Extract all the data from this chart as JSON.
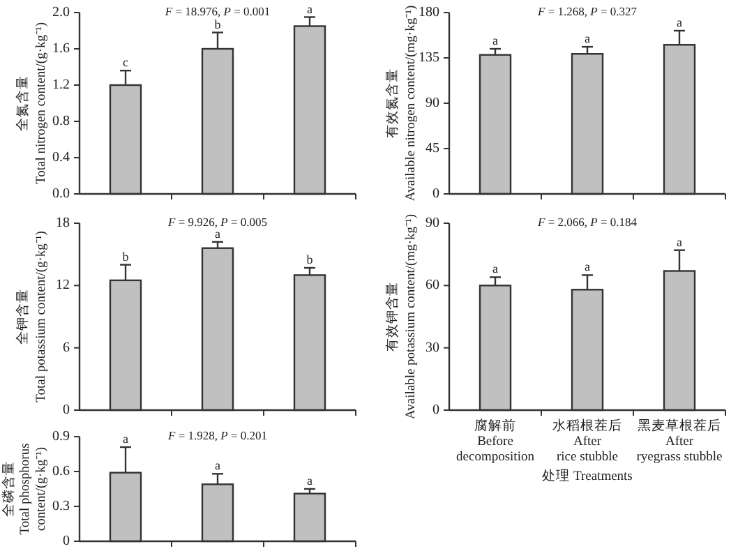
{
  "chart_data": [
    {
      "type": "bar",
      "ylabel": "全氮含量\nTotal nitrogen content/(g·kg⁻¹)",
      "categories": [
        null,
        null,
        null
      ],
      "values": [
        1.2,
        1.6,
        1.85
      ],
      "errors": [
        [
          1.2,
          1.36
        ],
        [
          1.6,
          1.78
        ],
        [
          1.85,
          1.95
        ]
      ],
      "color": "#c0c0c0",
      "ylim": [
        0,
        2.0
      ],
      "yticks": [
        {
          "value": 0,
          "label": "0.0"
        },
        0.4,
        0.8,
        1.2,
        1.6,
        {
          "value": 2,
          "label": "2.0"
        }
      ],
      "tick_labels": "y",
      "grid": false,
      "annotations": [
        "F = 18.976, P = 0.001",
        {
          "text": "c",
          "y": 1.36
        },
        {
          "text": "b",
          "y": 1.78
        },
        {
          "text": "a",
          "y": 1.95
        }
      ]
    },
    {
      "type": "bar",
      "ylabel": "有效氮含量\nAvailable nitrogen content/(mg·kg⁻¹)",
      "categories": [
        "腐解前\nBefore\ndecomposition",
        "水稻根茬后\nAfter\nrice stubble",
        "黑麦草根茬后\nAfter\nryegrass stubble"
      ],
      "values": [
        138,
        139,
        148
      ],
      "errors": [
        [
          138,
          144
        ],
        [
          139,
          146
        ],
        [
          148,
          162
        ]
      ],
      "color": "#c0c0c0",
      "ylim": [
        0,
        180
      ],
      "yticks": [
        0,
        45,
        90,
        135,
        180
      ],
      "tick_labels": "y",
      "grid": false,
      "annotations": [
        "F = 1.268, P = 0.327",
        {
          "text": "a",
          "x": "腐解前\nBefore\ndecomposition",
          "y": 144
        },
        {
          "text": "a",
          "x": "水稻根茬后\nAfter\nrice stubble",
          "y": 146
        },
        {
          "text": "a",
          "x": "黑麦草根茬后\nAfter\nryegrass stubble",
          "y": 162
        }
      ]
    },
    {
      "type": "bar",
      "ylabel": "全钾含量\nTotal potassium content/(g·kg⁻¹)",
      "categories": [
        null,
        null,
        null
      ],
      "values": [
        12.5,
        15.6,
        13.0
      ],
      "errors": [
        [
          12.5,
          14.0
        ],
        [
          15.6,
          16.2
        ],
        [
          13.0,
          13.7
        ]
      ],
      "color": "#c0c0c0",
      "ylim": [
        0,
        18
      ],
      "yticks": [
        0,
        6,
        12,
        18
      ],
      "tick_labels": "y",
      "grid": false,
      "annotations": [
        "F = 9.926, P = 0.005",
        {
          "text": "b",
          "y": 14.0
        },
        {
          "text": "a",
          "y": 16.2
        },
        {
          "text": "b",
          "y": 13.7
        }
      ]
    },
    {
      "type": "bar",
      "ylabel": "有效钾含量\nAvailable potassium content/(mg·kg⁻¹)",
      "xlabel": "处理 Treatments",
      "categories": [
        "腐解前\nBefore\ndecomposition",
        "水稻根茬后\nAfter\nrice stubble",
        "黑麦草根茬后\nAfter\nryegrass stubble"
      ],
      "values": [
        60,
        58,
        67
      ],
      "errors": [
        [
          60,
          64
        ],
        [
          58,
          65
        ],
        [
          67,
          77
        ]
      ],
      "color": "#c0c0c0",
      "ylim": [
        0,
        90
      ],
      "yticks": [
        0,
        30,
        60,
        90
      ],
      "grid": false,
      "annotations": [
        "F = 2.066, P = 0.184",
        {
          "text": "a",
          "x": "腐解前\nBefore\ndecomposition",
          "y": 64
        },
        {
          "text": "a",
          "x": "水稻根茬后\nAfter\nrice stubble",
          "y": 65
        },
        {
          "text": "a",
          "x": "黑麦草根茬后\nAfter\nryegrass stubble",
          "y": 77
        }
      ]
    },
    {
      "type": "bar",
      "ylabel": "全磷含量\nTotal phosphorus\ncontent/(g·kg⁻¹)",
      "categories": [
        null,
        null,
        null
      ],
      "values": [
        0.59,
        0.49,
        0.41
      ],
      "errors": [
        [
          0.59,
          0.81
        ],
        [
          0.49,
          0.58
        ],
        [
          0.41,
          0.45
        ]
      ],
      "color": "#c0c0c0",
      "ylim": [
        0,
        0.9
      ],
      "yticks": [
        0,
        0.3,
        0.6,
        0.9
      ],
      "tick_labels": "y",
      "grid": false,
      "annotations": [
        "F = 1.928, P = 0.201",
        "a",
        "a",
        "a"
      ]
    }
  ]
}
